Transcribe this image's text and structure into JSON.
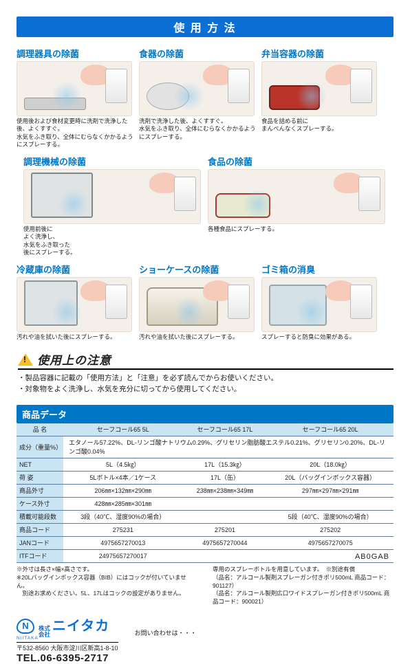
{
  "title_bar": "使 用 方 法",
  "usage": {
    "row1": [
      {
        "title": "調理器具の除菌",
        "caption": "使用後および食材変更時に洗剤で洗浄した後、よくすすぐ。\n水気をふき取り、全体にむらなくかかるようにスプレーする。",
        "obj": "board"
      },
      {
        "title": "食器の除菌",
        "caption": "洗剤で洗浄した後、よくすすぐ。\n水気をふき取り、全体にむらなくかかるようにスプレーする。",
        "obj": "dish"
      },
      {
        "title": "弁当容器の除菌",
        "caption": "食品を詰める前に\nまんべんなくスプレーする。",
        "obj": "bento"
      }
    ],
    "row2": [
      {
        "title": "調理機械の除菌",
        "caption": "使用前後に\nよく洗浄し、\n水気をふき取った\n後にスプレーする。",
        "obj": "machine"
      },
      {
        "title": "食品の除菌",
        "caption": "各種食品にスプレーする。",
        "obj": "food"
      }
    ],
    "row3": [
      {
        "title": "冷蔵庫の除菌",
        "caption": "汚れや油を拭いた後にスプレーする。",
        "obj": "fridge"
      },
      {
        "title": "ショーケースの除菌",
        "caption": "汚れや油を拭いた後にスプレーする。",
        "obj": "showcase"
      },
      {
        "title": "ゴミ箱の消臭",
        "caption": "スプレーすると防臭に効果がある。",
        "obj": "bin"
      }
    ]
  },
  "caution": {
    "heading": "使用上の注意",
    "lines": [
      "・製品容器に記載の「使用方法」と「注意」を必ず読んでからお使いください。",
      "・対象物をよく洗浄し、水気を充分に切ってから使用してください。"
    ]
  },
  "data_section": {
    "header": "商品データ",
    "col_headers": [
      "セーフコール65  5L",
      "セーフコール65  17L",
      "セーフコール65  20L"
    ],
    "rows": [
      {
        "label": "品 名",
        "type": "head"
      },
      {
        "label": "成分（重量%）",
        "span": "エタノール57.22%、DL-リンゴ酸ナトリウム0.29%、グリセリン脂肪酸エステル0.21%、グリセリン0.20%、DL-リンゴ酸0.04%"
      },
      {
        "label": "NET",
        "c": [
          "5L（4.5㎏）",
          "17L（15.3㎏）",
          "20L（18.0㎏）"
        ]
      },
      {
        "label": "荷 姿",
        "c": [
          "5Lボトル×4本／1ケース",
          "17L（缶）",
          "20L（バッグインボックス容器）"
        ]
      },
      {
        "label": "商品外寸",
        "c": [
          "206㎜×132㎜×290㎜",
          "238㎜×238㎜×349㎜",
          "297㎜×297㎜×291㎜"
        ]
      },
      {
        "label": "ケース外寸",
        "c": [
          "428㎜×285㎜×301㎜",
          "",
          ""
        ]
      },
      {
        "label": "積載可能段数",
        "c": [
          "3段（40℃、湿度90%の場合）",
          "",
          "5段（40℃、湿度90%の場合）"
        ]
      },
      {
        "label": "商品コード",
        "c": [
          "275231",
          "275201",
          "275202"
        ]
      },
      {
        "label": "JANコード",
        "c": [
          "4975657270013",
          "4975657270044",
          "4975657270075"
        ]
      },
      {
        "label": "ITFコード",
        "c": [
          "24975657270017",
          "",
          ""
        ]
      }
    ],
    "notes_left": "※外寸は長さ×幅×高さです。\n※20Lバッグインボックス容器（BIB）にはコックが付いていません。\n　別途お求めください。5L、17Lはコックの設定がありません。",
    "notes_right": "専用のスプレーボトルを用意しています。　※別途有償\n（品名：アルコール製剤スプレーガン付きポリ500mL 商品コード：901127）\n（品名：アルコール製剤広口ワイドスプレーガン付きポリ500mL 商品コード：900021）"
  },
  "footer": {
    "logo_small": "NIITAKA",
    "kk": "株式\n会社",
    "brand": "ニイタカ",
    "addr": "〒532-8560  大阪市淀川区新高1-8-10",
    "tel": "TEL.06-6395-2717",
    "inquiry": "お問い合わせは・・・",
    "code": "AB0GAB"
  },
  "colors": {
    "primary": "#0b6fd6",
    "headline": "#0078c8",
    "table_row": "#c9e5f4",
    "table_border": "#5a7aa0",
    "warn": "#f7bf23"
  }
}
